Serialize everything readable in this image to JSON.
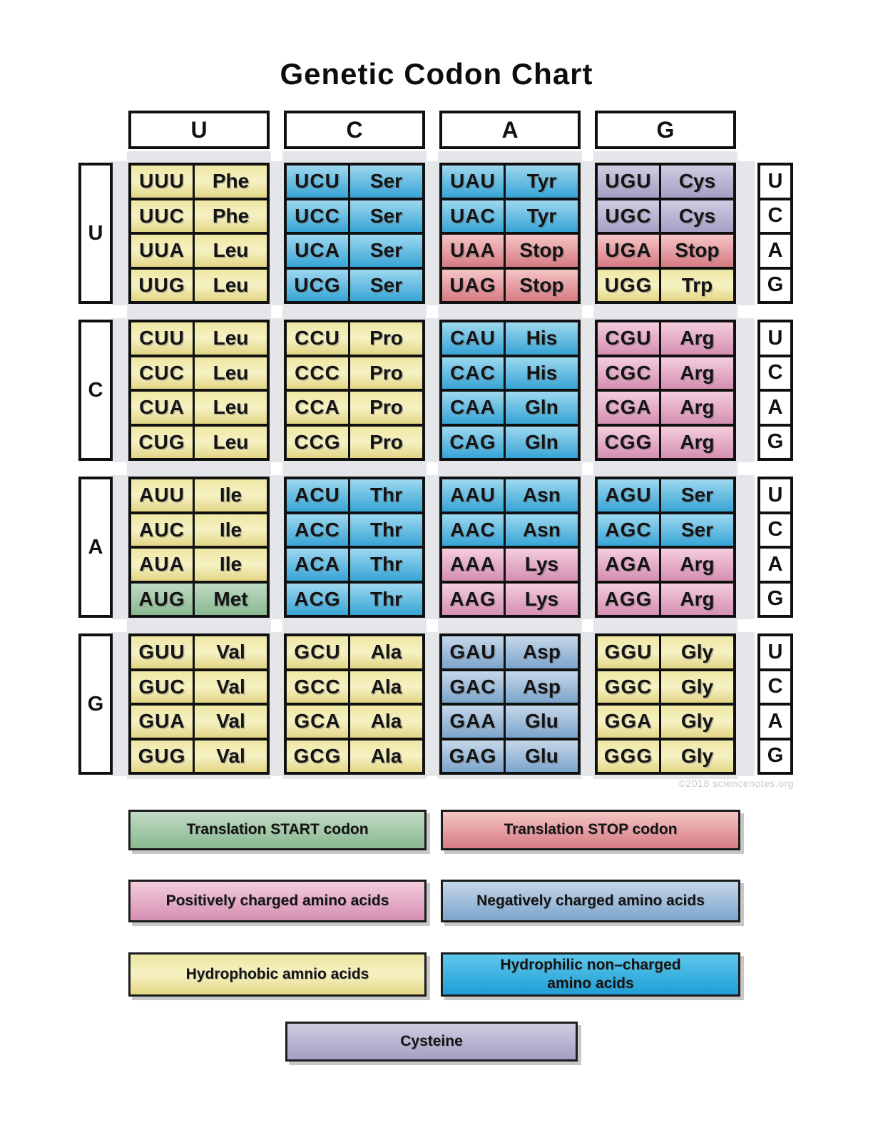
{
  "title": "Genetic Codon Chart",
  "watermark": "©2018 sciencenotes.org",
  "grid": {
    "second_letters": [
      "U",
      "C",
      "A",
      "G"
    ],
    "first_letters": [
      "U",
      "C",
      "A",
      "G"
    ],
    "third_letters": [
      "U",
      "C",
      "A",
      "G"
    ],
    "blocks": [
      {
        "row": "U",
        "col": "U",
        "entries": [
          [
            "UUU",
            "Phe",
            "hydrophobic"
          ],
          [
            "UUC",
            "Phe",
            "hydrophobic"
          ],
          [
            "UUA",
            "Leu",
            "hydrophobic"
          ],
          [
            "UUG",
            "Leu",
            "hydrophobic"
          ]
        ]
      },
      {
        "row": "U",
        "col": "C",
        "entries": [
          [
            "UCU",
            "Ser",
            "hydrophilic"
          ],
          [
            "UCC",
            "Ser",
            "hydrophilic"
          ],
          [
            "UCA",
            "Ser",
            "hydrophilic"
          ],
          [
            "UCG",
            "Ser",
            "hydrophilic"
          ]
        ]
      },
      {
        "row": "U",
        "col": "A",
        "entries": [
          [
            "UAU",
            "Tyr",
            "hydrophilic"
          ],
          [
            "UAC",
            "Tyr",
            "hydrophilic"
          ],
          [
            "UAA",
            "Stop",
            "stop"
          ],
          [
            "UAG",
            "Stop",
            "stop"
          ]
        ]
      },
      {
        "row": "U",
        "col": "G",
        "entries": [
          [
            "UGU",
            "Cys",
            "cysteine"
          ],
          [
            "UGC",
            "Cys",
            "cysteine"
          ],
          [
            "UGA",
            "Stop",
            "stop"
          ],
          [
            "UGG",
            "Trp",
            "hydrophobic"
          ]
        ]
      },
      {
        "row": "C",
        "col": "U",
        "entries": [
          [
            "CUU",
            "Leu",
            "hydrophobic"
          ],
          [
            "CUC",
            "Leu",
            "hydrophobic"
          ],
          [
            "CUA",
            "Leu",
            "hydrophobic"
          ],
          [
            "CUG",
            "Leu",
            "hydrophobic"
          ]
        ]
      },
      {
        "row": "C",
        "col": "C",
        "entries": [
          [
            "CCU",
            "Pro",
            "hydrophobic"
          ],
          [
            "CCC",
            "Pro",
            "hydrophobic"
          ],
          [
            "CCA",
            "Pro",
            "hydrophobic"
          ],
          [
            "CCG",
            "Pro",
            "hydrophobic"
          ]
        ]
      },
      {
        "row": "C",
        "col": "A",
        "entries": [
          [
            "CAU",
            "His",
            "hydrophilic"
          ],
          [
            "CAC",
            "His",
            "hydrophilic"
          ],
          [
            "CAA",
            "Gln",
            "hydrophilic"
          ],
          [
            "CAG",
            "Gln",
            "hydrophilic"
          ]
        ]
      },
      {
        "row": "C",
        "col": "G",
        "entries": [
          [
            "CGU",
            "Arg",
            "positive"
          ],
          [
            "CGC",
            "Arg",
            "positive"
          ],
          [
            "CGA",
            "Arg",
            "positive"
          ],
          [
            "CGG",
            "Arg",
            "positive"
          ]
        ]
      },
      {
        "row": "A",
        "col": "U",
        "entries": [
          [
            "AUU",
            "Ile",
            "hydrophobic"
          ],
          [
            "AUC",
            "Ile",
            "hydrophobic"
          ],
          [
            "AUA",
            "Ile",
            "hydrophobic"
          ],
          [
            "AUG",
            "Met",
            "start"
          ]
        ]
      },
      {
        "row": "A",
        "col": "C",
        "entries": [
          [
            "ACU",
            "Thr",
            "hydrophilic"
          ],
          [
            "ACC",
            "Thr",
            "hydrophilic"
          ],
          [
            "ACA",
            "Thr",
            "hydrophilic"
          ],
          [
            "ACG",
            "Thr",
            "hydrophilic"
          ]
        ]
      },
      {
        "row": "A",
        "col": "A",
        "entries": [
          [
            "AAU",
            "Asn",
            "hydrophilic"
          ],
          [
            "AAC",
            "Asn",
            "hydrophilic"
          ],
          [
            "AAA",
            "Lys",
            "positive"
          ],
          [
            "AAG",
            "Lys",
            "positive"
          ]
        ]
      },
      {
        "row": "A",
        "col": "G",
        "entries": [
          [
            "AGU",
            "Ser",
            "hydrophilic"
          ],
          [
            "AGC",
            "Ser",
            "hydrophilic"
          ],
          [
            "AGA",
            "Arg",
            "positive"
          ],
          [
            "AGG",
            "Arg",
            "positive"
          ]
        ]
      },
      {
        "row": "G",
        "col": "U",
        "entries": [
          [
            "GUU",
            "Val",
            "hydrophobic"
          ],
          [
            "GUC",
            "Val",
            "hydrophobic"
          ],
          [
            "GUA",
            "Val",
            "hydrophobic"
          ],
          [
            "GUG",
            "Val",
            "hydrophobic"
          ]
        ]
      },
      {
        "row": "G",
        "col": "C",
        "entries": [
          [
            "GCU",
            "Ala",
            "hydrophobic"
          ],
          [
            "GCC",
            "Ala",
            "hydrophobic"
          ],
          [
            "GCA",
            "Ala",
            "hydrophobic"
          ],
          [
            "GCG",
            "Ala",
            "hydrophobic"
          ]
        ]
      },
      {
        "row": "G",
        "col": "A",
        "entries": [
          [
            "GAU",
            "Asp",
            "negative"
          ],
          [
            "GAC",
            "Asp",
            "negative"
          ],
          [
            "GAA",
            "Glu",
            "negative"
          ],
          [
            "GAG",
            "Glu",
            "negative"
          ]
        ]
      },
      {
        "row": "G",
        "col": "G",
        "entries": [
          [
            "GGU",
            "Gly",
            "hydrophobic"
          ],
          [
            "GGC",
            "Gly",
            "hydrophobic"
          ],
          [
            "GGA",
            "Gly",
            "hydrophobic"
          ],
          [
            "GGG",
            "Gly",
            "hydrophobic"
          ]
        ]
      }
    ]
  },
  "legend": [
    {
      "label": "Translation START codon",
      "category": "start"
    },
    {
      "label": "Translation STOP codon",
      "category": "stop"
    },
    {
      "label": "Positively charged amino acids",
      "category": "positive"
    },
    {
      "label": "Negatively charged amino acids",
      "category": "negative"
    },
    {
      "label": "Hydrophobic amnio acids",
      "category": "hydrophobic"
    },
    {
      "label": "Hydrophilic non–charged\namino acids",
      "category": "hydrophilic"
    },
    {
      "label": "Cysteine",
      "category": "cysteine"
    }
  ],
  "colors": {
    "hydrophobic": [
      "#eee7a4",
      "#f6f1c3",
      "#e2d685"
    ],
    "hydrophilic": [
      "#9ed8ef",
      "#37a4d5"
    ],
    "positive": [
      "#f4cddd",
      "#d58fb2"
    ],
    "negative": [
      "#c6d7e9",
      "#7ca5cc"
    ],
    "stop": [
      "#f5c5c4",
      "#d67b84"
    ],
    "start": [
      "#c0dbc4",
      "#89b891"
    ],
    "cysteine": [
      "#cfcce2",
      "#a4a0c4"
    ],
    "hydrophilic_legend": [
      "#5ec7ec",
      "#1f9fd4"
    ],
    "shadow_band": "#e5e6e9"
  }
}
